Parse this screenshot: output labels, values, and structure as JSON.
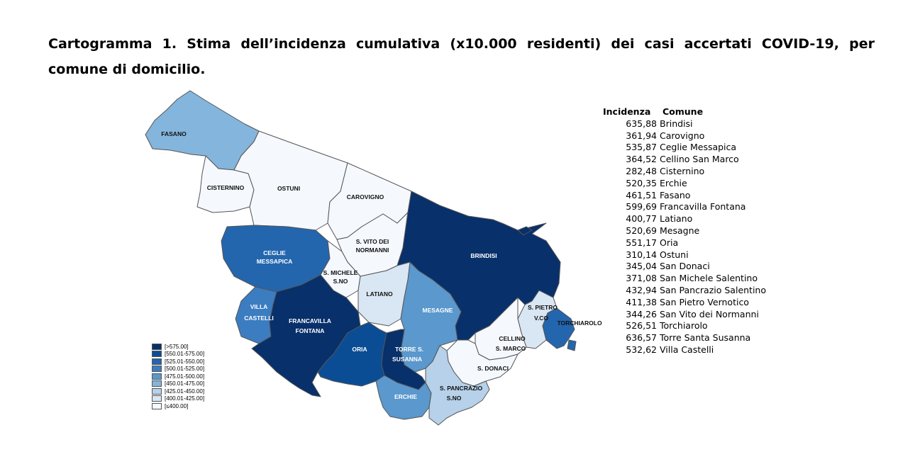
{
  "title": "Cartogramma 1. Stima dell’incidenza cumulativa (x10.000 residenti) dei casi accertati COVID-19, per comune di domicilio.",
  "colors": {
    "c1": "#08306b",
    "c2": "#0b4d95",
    "c3": "#2366ae",
    "c4": "#3b7dc0",
    "c5": "#5a98cd",
    "c6": "#84b5dc",
    "c7": "#b6d1e9",
    "c8": "#d9e6f3",
    "c9": "#f5f8fd"
  },
  "legend": [
    {
      "label": "[>575.00]",
      "color": "#08306b"
    },
    {
      "label": "[550.01-575.00]",
      "color": "#0b4d95"
    },
    {
      "label": "[525.01-550.00]",
      "color": "#2366ae"
    },
    {
      "label": "[500.01-525.00]",
      "color": "#3b7dc0"
    },
    {
      "label": "[475.01-500.00]",
      "color": "#5a98cd"
    },
    {
      "label": "[450.01-475.00]",
      "color": "#84b5dc"
    },
    {
      "label": "[425.01-450.00]",
      "color": "#b6d1e9"
    },
    {
      "label": "[400.01-425.00]",
      "color": "#d9e6f3"
    },
    {
      "label": "[≤400.00]",
      "color": "#f5f8fd"
    }
  ],
  "map_labels": {
    "fasano": "FASANO",
    "cisternino": "CISTERNINO",
    "ostuni": "OSTUNI",
    "carovigno": "CAROVIGNO",
    "svito_1": "S. VITO DEI",
    "svito_2": "NORMANNI",
    "ceglie_1": "CEGLIE",
    "ceglie_2": "MESSAPICA",
    "smichele_1": "S. MICHELE",
    "smichele_2": "S.NO",
    "brindisi": "BRINDISI",
    "latiano": "LATIANO",
    "villa_1": "VILLA",
    "villa_2": "CASTELLI",
    "francavilla_1": "FRANCAVILLA",
    "francavilla_2": "FONTANA",
    "mesagne": "MESAGNE",
    "spietro_1": "S. PIETRO",
    "spietro_2": "V.CO",
    "torchiarolo": "TORCHIAROLO",
    "oria": "ORIA",
    "torre_1": "TORRE S.",
    "torre_2": "SUSANNA",
    "cellino_1": "CELLINO",
    "cellino_2": "S. MARCO",
    "sdonaci": "S. DONACI",
    "erchie": "ERCHIE",
    "spancrazio_1": "S. PANCRAZIO",
    "spancrazio_2": "S.NO"
  },
  "table": {
    "header_incidenza": "Incidenza",
    "header_comune": "Comune",
    "rows": [
      {
        "value": "635,88",
        "name": "Brindisi"
      },
      {
        "value": "361,94",
        "name": "Carovigno"
      },
      {
        "value": "535,87",
        "name": "Ceglie Messapica"
      },
      {
        "value": "364,52",
        "name": "Cellino San Marco"
      },
      {
        "value": "282,48",
        "name": "Cisternino"
      },
      {
        "value": "520,35",
        "name": "Erchie"
      },
      {
        "value": "461,51",
        "name": "Fasano"
      },
      {
        "value": "599,69",
        "name": "Francavilla Fontana"
      },
      {
        "value": "400,77",
        "name": "Latiano"
      },
      {
        "value": "520,69",
        "name": "Mesagne"
      },
      {
        "value": "551,17",
        "name": "Oria"
      },
      {
        "value": "310,14",
        "name": "Ostuni"
      },
      {
        "value": "345,04",
        "name": "San Donaci"
      },
      {
        "value": "371,08",
        "name": "San Michele Salentino"
      },
      {
        "value": "432,94",
        "name": "San Pancrazio Salentino"
      },
      {
        "value": "411,38",
        "name": "San Pietro Vernotico"
      },
      {
        "value": "344,26",
        "name": "San Vito dei Normanni"
      },
      {
        "value": "526,51",
        "name": "Torchiarolo"
      },
      {
        "value": "636,57",
        "name": "Torre Santa Susanna"
      },
      {
        "value": "532,62",
        "name": "Villa Castelli"
      }
    ]
  }
}
